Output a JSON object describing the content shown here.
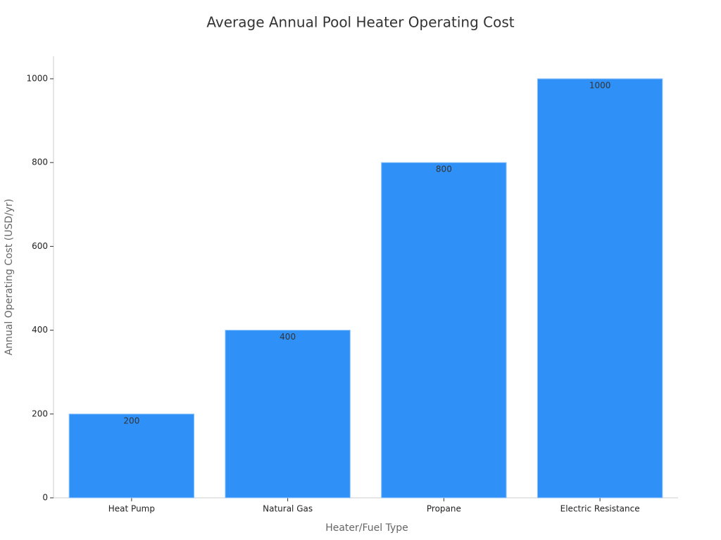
{
  "chart_data": {
    "type": "bar",
    "title": "Average Annual Pool Heater Operating Cost",
    "x_label": "Heater/Fuel Type",
    "y_label": "Annual Operating Cost (USD/yr)",
    "categories": [
      "Heat Pump",
      "Natural Gas",
      "Propane",
      "Electric Resistance"
    ],
    "values": [
      200,
      400,
      800,
      1000
    ],
    "color": "#2f91f8",
    "ylim": [
      0,
      1050
    ],
    "yticks": [
      0,
      200,
      400,
      600,
      800,
      1000
    ],
    "grid": false
  }
}
